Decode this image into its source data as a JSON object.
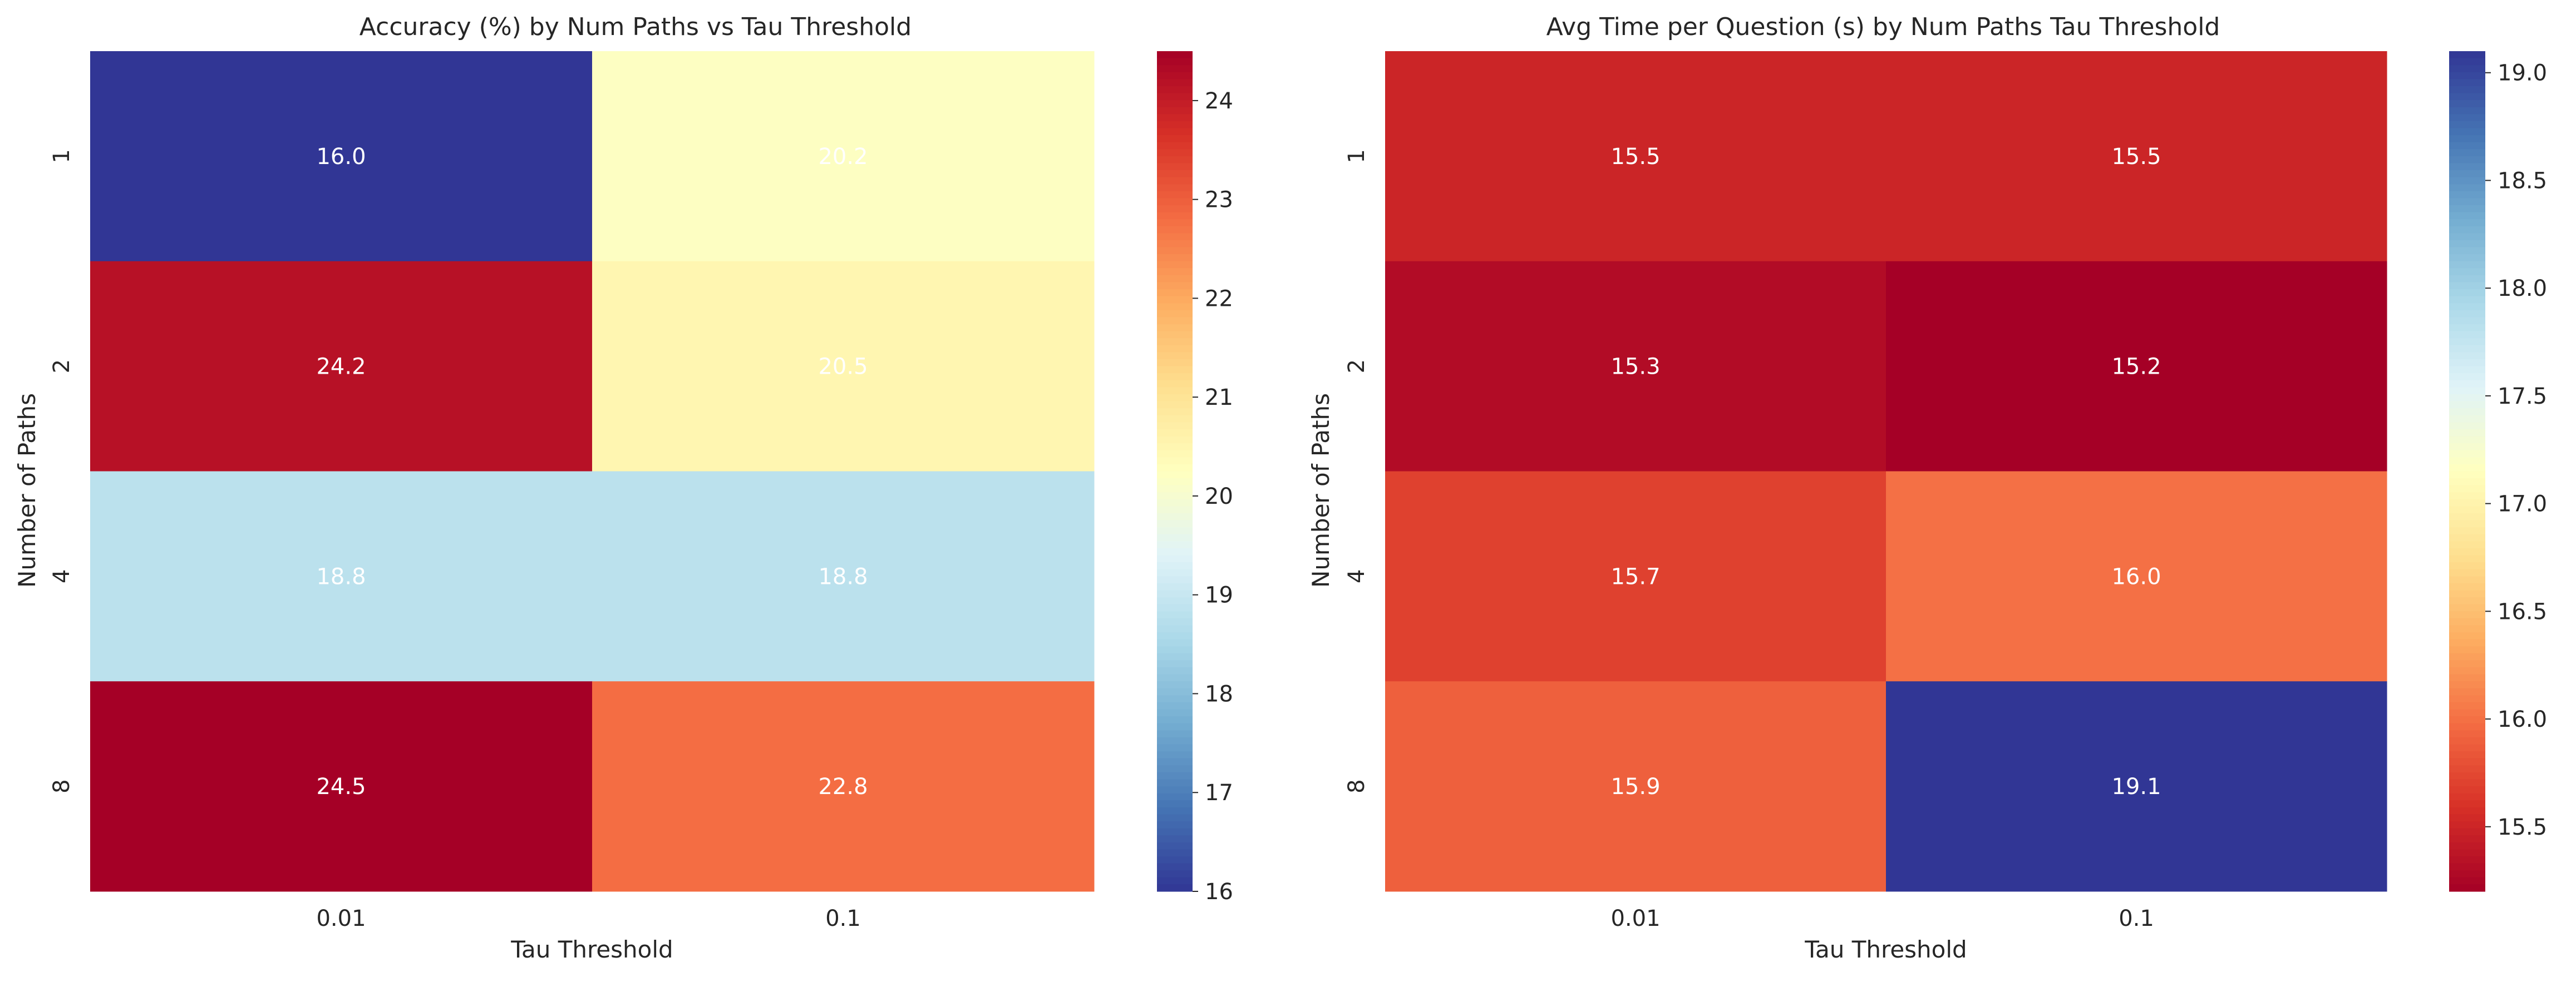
{
  "chart_data": [
    {
      "type": "heatmap",
      "title": "Accuracy (%) by Num Paths vs Tau Threshold",
      "xlabel": "Tau Threshold",
      "ylabel": "Number of Paths",
      "x_categories": [
        "0.01",
        "0.1"
      ],
      "y_categories": [
        "1",
        "2",
        "4",
        "8"
      ],
      "values": [
        [
          16.0,
          20.2
        ],
        [
          24.2,
          20.5
        ],
        [
          18.8,
          18.8
        ],
        [
          24.5,
          22.8
        ]
      ],
      "value_labels": [
        [
          "16.0",
          "20.2"
        ],
        [
          "24.2",
          "20.5"
        ],
        [
          "18.8",
          "18.8"
        ],
        [
          "24.5",
          "22.8"
        ]
      ],
      "colormap": "RdYlBu_r",
      "color_range": [
        16.0,
        24.5
      ],
      "colorbar_ticks": [
        "16",
        "17",
        "18",
        "19",
        "20",
        "21",
        "22",
        "23",
        "24"
      ],
      "grid": false,
      "colorbar": "right"
    },
    {
      "type": "heatmap",
      "title": "Avg Time per Question (s) by Num Paths Tau Threshold",
      "xlabel": "Tau Threshold",
      "ylabel": "Number of Paths",
      "x_categories": [
        "0.01",
        "0.1"
      ],
      "y_categories": [
        "1",
        "2",
        "4",
        "8"
      ],
      "values": [
        [
          15.5,
          15.5
        ],
        [
          15.3,
          15.2
        ],
        [
          15.7,
          16.0
        ],
        [
          15.9,
          19.1
        ]
      ],
      "value_labels": [
        [
          "15.5",
          "15.5"
        ],
        [
          "15.3",
          "15.2"
        ],
        [
          "15.7",
          "16.0"
        ],
        [
          "15.9",
          "19.1"
        ]
      ],
      "colormap": "RdYlBu",
      "color_range": [
        15.2,
        19.1
      ],
      "colorbar_ticks": [
        "15.5",
        "16.0",
        "16.5",
        "17.0",
        "17.5",
        "18.0",
        "18.5",
        "19.0"
      ],
      "grid": false,
      "colorbar": "right"
    }
  ],
  "colors": {
    "text": "#262626",
    "cell_text": "#ffffff",
    "tick": "#262626"
  }
}
